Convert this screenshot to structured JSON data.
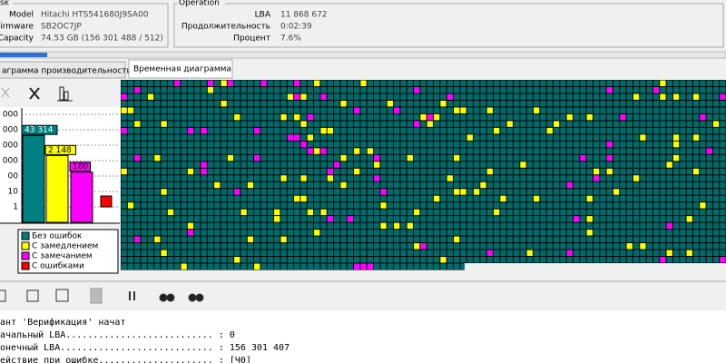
{
  "disk": {
    "title": "sk",
    "fields": [
      {
        "label": "Model",
        "value": "Hitachi HTS541680J9SA00"
      },
      {
        "label": "irmware",
        "value": "SB2OC7JP"
      },
      {
        "label": "Capacity",
        "value": "74.53 GB (156 301 488 / 512)"
      }
    ]
  },
  "operation": {
    "title": "Operation",
    "fields": [
      {
        "label": "LBA",
        "value": "11 868 672"
      },
      {
        "label": "Продолжительность",
        "value": "0:02:39"
      },
      {
        "label": "Процент",
        "value": "7.6%"
      }
    ]
  },
  "tabs": [
    "аграмма производительности",
    "Временная диаграмма"
  ],
  "chart_data": {
    "type": "bar",
    "log_scale": true,
    "ylim": [
      0.1,
      1000000
    ],
    "yticks": [
      {
        "value": 1000000,
        "label": "000"
      },
      {
        "value": 100000,
        "label": "000"
      },
      {
        "value": 10000,
        "label": "000"
      },
      {
        "value": 1000,
        "label": "000"
      },
      {
        "value": 100,
        "label": "00"
      },
      10,
      1
    ],
    "series": [
      {
        "name": "Без ошибок",
        "color": "#008080",
        "values": [
          43314
        ],
        "value_labels": [
          "43 314"
        ]
      },
      {
        "name": "С замедлением",
        "color": "#ffff00",
        "values": [
          2148
        ],
        "value_labels": [
          "2 148"
        ]
      },
      {
        "name": "С замечанием",
        "color": "#ff00ff",
        "values": [
          180
        ],
        "value_labels": [
          "180"
        ]
      },
      {
        "name": "С ошибками",
        "color": "#ff0000",
        "values": [
          0
        ]
      }
    ]
  },
  "log": [
    "ант 'Верификация' начат",
    "ачальный LBA........................... : 0",
    "онечный LBA............................ : 156 301 407",
    "ействие при ошибке..................... : [Ч0]"
  ]
}
